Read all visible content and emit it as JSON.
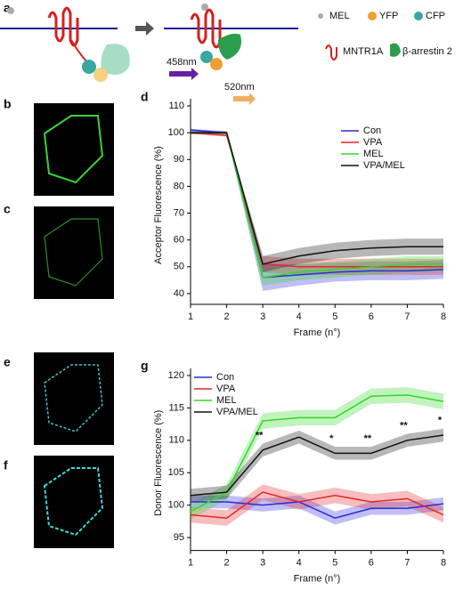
{
  "figure": {
    "panel_labels": [
      "a",
      "b",
      "c",
      "d",
      "e",
      "f",
      "g"
    ],
    "schematic": {
      "mel": "MEL",
      "yfp": "YFP",
      "cfp": "CFP",
      "receptor": "MNTR1A",
      "arrestin": "β-arrestin 2",
      "excitation": "458nm",
      "emission": "520nm"
    }
  },
  "chart_data": [
    {
      "type": "line",
      "xlabel": "Frame (n°)",
      "ylabel": "Acceptor Fluorescence (%)",
      "xlim": [
        1,
        8
      ],
      "xticks": [
        1,
        2,
        3,
        4,
        5,
        6,
        7,
        8
      ],
      "ylim": [
        36,
        110
      ],
      "yticks": [
        40,
        50,
        60,
        70,
        80,
        90,
        100,
        110
      ],
      "legend": "upper right",
      "x": [
        1,
        2,
        3,
        4,
        5,
        6,
        7,
        8
      ],
      "series": [
        {
          "name": "Con",
          "color": "#2b2bd9",
          "values": [
            101,
            100,
            46,
            47,
            48,
            48.5,
            48.5,
            49
          ],
          "errors": [
            0.5,
            0.5,
            5,
            4,
            3.5,
            3.5,
            3.5,
            3.5
          ]
        },
        {
          "name": "VPA",
          "color": "#e3262a",
          "values": [
            100,
            99,
            51,
            50,
            50,
            50,
            50,
            50
          ],
          "errors": [
            0.5,
            0.5,
            3,
            3,
            3,
            3,
            3,
            3
          ]
        },
        {
          "name": "MEL",
          "color": "#33d62b",
          "values": [
            100,
            100,
            46,
            48,
            49,
            50,
            51,
            51
          ],
          "errors": [
            0.5,
            0.5,
            3,
            3,
            3,
            3,
            3,
            3
          ]
        },
        {
          "name": "VPA/MEL",
          "color": "#111111",
          "values": [
            100,
            100,
            51,
            54,
            56,
            57,
            57.5,
            57.5
          ],
          "errors": [
            0.5,
            0.5,
            3,
            3,
            3,
            3,
            3,
            3
          ]
        }
      ]
    },
    {
      "type": "line",
      "xlabel": "Frame (n°)",
      "ylabel": "Donor Fluorescence (%)",
      "xlim": [
        1,
        8
      ],
      "xticks": [
        1,
        2,
        3,
        4,
        5,
        6,
        7,
        8
      ],
      "ylim": [
        93,
        120
      ],
      "yticks": [
        95,
        100,
        105,
        110,
        115,
        120
      ],
      "legend": "upper left",
      "x": [
        1,
        2,
        3,
        4,
        5,
        6,
        7,
        8
      ],
      "series": [
        {
          "name": "Con",
          "color": "#2b2bd9",
          "values": [
            100.5,
            100.5,
            100,
            100.5,
            98,
            99.5,
            99.5,
            100.2
          ],
          "errors": [
            1,
            1,
            1,
            1,
            1,
            1,
            1,
            1
          ]
        },
        {
          "name": "VPA",
          "color": "#e3262a",
          "values": [
            98.5,
            98,
            102,
            100.5,
            101.5,
            100.5,
            101,
            98.5
          ],
          "errors": [
            1.2,
            1.2,
            1.2,
            1.2,
            1.2,
            1.2,
            1.2,
            1.2
          ]
        },
        {
          "name": "MEL",
          "color": "#33d62b",
          "values": [
            99,
            102,
            113,
            113.5,
            113.5,
            116.8,
            117,
            116
          ],
          "errors": [
            1.2,
            1.2,
            1.2,
            1.2,
            1.2,
            1.2,
            1.2,
            1.2
          ]
        },
        {
          "name": "VPA/MEL",
          "color": "#111111",
          "values": [
            101.5,
            102,
            108.5,
            110.5,
            108,
            108,
            110,
            110.8
          ],
          "errors": [
            1,
            1,
            1,
            1,
            1,
            1,
            1,
            1
          ]
        }
      ],
      "annotations": [
        {
          "x": 3,
          "text": "**"
        },
        {
          "x": 5,
          "text": "*"
        },
        {
          "x": 6,
          "text": "**"
        },
        {
          "x": 7,
          "text": "**"
        },
        {
          "x": 8,
          "text": "*"
        }
      ]
    }
  ]
}
